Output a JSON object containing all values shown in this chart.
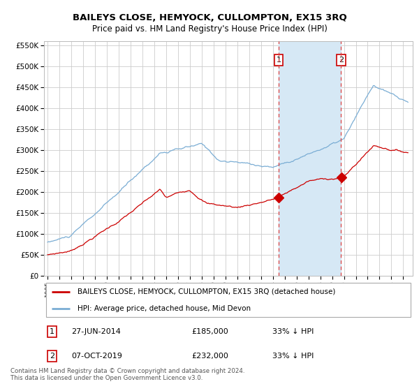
{
  "title": "BAILEYS CLOSE, HEMYOCK, CULLOMPTON, EX15 3RQ",
  "subtitle": "Price paid vs. HM Land Registry's House Price Index (HPI)",
  "legend_label_red": "BAILEYS CLOSE, HEMYOCK, CULLOMPTON, EX15 3RQ (detached house)",
  "legend_label_blue": "HPI: Average price, detached house, Mid Devon",
  "annotation1_label": "1",
  "annotation1_date": "27-JUN-2014",
  "annotation1_price": "£185,000",
  "annotation1_hpi": "33% ↓ HPI",
  "annotation2_label": "2",
  "annotation2_date": "07-OCT-2019",
  "annotation2_price": "£232,000",
  "annotation2_hpi": "33% ↓ HPI",
  "footer": "Contains HM Land Registry data © Crown copyright and database right 2024.\nThis data is licensed under the Open Government Licence v3.0.",
  "ylim": [
    0,
    560000
  ],
  "yticks": [
    0,
    50000,
    100000,
    150000,
    200000,
    250000,
    300000,
    350000,
    400000,
    450000,
    500000,
    550000
  ],
  "red_color": "#cc0000",
  "blue_color": "#7aadd4",
  "blue_fill": "#d6e8f5",
  "dashed_color": "#dd4444",
  "bg_color": "#ffffff",
  "grid_color": "#cccccc",
  "anno1_x_year": 2014.5,
  "anno2_x_year": 2019.75,
  "anno1_sale_price": 185000,
  "anno2_sale_price": 232000,
  "xmin": 1994.7,
  "xmax": 2025.8
}
